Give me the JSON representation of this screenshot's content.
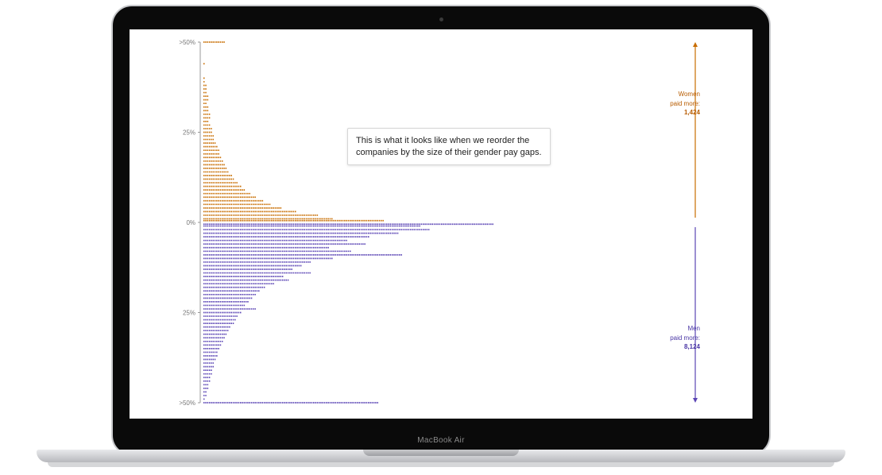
{
  "device": {
    "brand_label": "MacBook Air"
  },
  "annotation": {
    "text": "This is what it looks like when we reorder the companies by the size of their gender pay gaps."
  },
  "colors": {
    "women": "#c86d00",
    "men": "#5b45b5",
    "axis": "#999999"
  },
  "legend": {
    "women": {
      "line1": "Women",
      "line2": "paid more:",
      "count": "1,424"
    },
    "men": {
      "line1": "Men",
      "line2": "paid more:",
      "count": "8,124"
    }
  },
  "chart_data": {
    "type": "bar",
    "orientation": "horizontal",
    "mark": "dot-stack",
    "y_ticks": [
      ">50%",
      "25%",
      "0%",
      "25%",
      ">50%"
    ],
    "y_tick_values": [
      50,
      25,
      0,
      -25,
      -50
    ],
    "ylim": [
      -50,
      50
    ],
    "series": [
      {
        "name": "Women paid more",
        "color": "#c86d00",
        "total": 1424,
        "bins": [
          [
            50,
            13
          ],
          [
            47,
            1
          ],
          [
            45,
            1
          ],
          [
            44,
            2
          ],
          [
            42,
            1
          ],
          [
            40,
            2
          ],
          [
            39,
            2
          ],
          [
            38,
            3
          ],
          [
            37,
            3
          ],
          [
            36,
            3
          ],
          [
            35,
            4
          ],
          [
            34,
            4
          ],
          [
            33,
            3
          ],
          [
            32,
            4
          ],
          [
            31,
            4
          ],
          [
            30,
            5
          ],
          [
            29,
            5
          ],
          [
            28,
            4
          ],
          [
            27,
            5
          ],
          [
            26,
            6
          ],
          [
            25,
            6
          ],
          [
            24,
            7
          ],
          [
            23,
            7
          ],
          [
            22,
            8
          ],
          [
            21,
            9
          ],
          [
            20,
            10
          ],
          [
            19,
            10
          ],
          [
            18,
            11
          ],
          [
            17,
            12
          ],
          [
            16,
            13
          ],
          [
            15,
            14
          ],
          [
            14,
            15
          ],
          [
            13,
            17
          ],
          [
            12,
            18
          ],
          [
            11,
            20
          ],
          [
            10,
            22
          ],
          [
            9,
            24
          ],
          [
            8,
            27
          ],
          [
            7,
            30
          ],
          [
            6,
            34
          ],
          [
            5,
            38
          ],
          [
            4,
            44
          ],
          [
            3,
            52
          ],
          [
            2,
            64
          ],
          [
            1,
            72
          ],
          [
            0.5,
            100
          ]
        ]
      },
      {
        "name": "Men paid more",
        "color": "#5b45b5",
        "total": 8124,
        "bins": [
          [
            -0.5,
            160
          ],
          [
            -1,
            120
          ],
          [
            -2,
            125
          ],
          [
            -3,
            108
          ],
          [
            -4,
            92
          ],
          [
            -5,
            80
          ],
          [
            -6,
            90
          ],
          [
            -7,
            70
          ],
          [
            -8,
            82
          ],
          [
            -9,
            110
          ],
          [
            -10,
            72
          ],
          [
            -11,
            60
          ],
          [
            -12,
            55
          ],
          [
            -13,
            50
          ],
          [
            -14,
            60
          ],
          [
            -15,
            45
          ],
          [
            -16,
            48
          ],
          [
            -17,
            40
          ],
          [
            -18,
            35
          ],
          [
            -19,
            32
          ],
          [
            -20,
            30
          ],
          [
            -21,
            28
          ],
          [
            -22,
            26
          ],
          [
            -23,
            24
          ],
          [
            -24,
            30
          ],
          [
            -25,
            22
          ],
          [
            -26,
            20
          ],
          [
            -27,
            19
          ],
          [
            -28,
            18
          ],
          [
            -29,
            16
          ],
          [
            -30,
            15
          ],
          [
            -31,
            14
          ],
          [
            -32,
            13
          ],
          [
            -33,
            12
          ],
          [
            -34,
            11
          ],
          [
            -35,
            10
          ],
          [
            -36,
            9
          ],
          [
            -37,
            9
          ],
          [
            -38,
            8
          ],
          [
            -39,
            7
          ],
          [
            -40,
            7
          ],
          [
            -41,
            6
          ],
          [
            -42,
            6
          ],
          [
            -43,
            5
          ],
          [
            -44,
            5
          ],
          [
            -45,
            4
          ],
          [
            -46,
            4
          ],
          [
            -47,
            3
          ],
          [
            -48,
            3
          ],
          [
            -49,
            2
          ],
          [
            -50,
            97
          ]
        ]
      }
    ]
  }
}
